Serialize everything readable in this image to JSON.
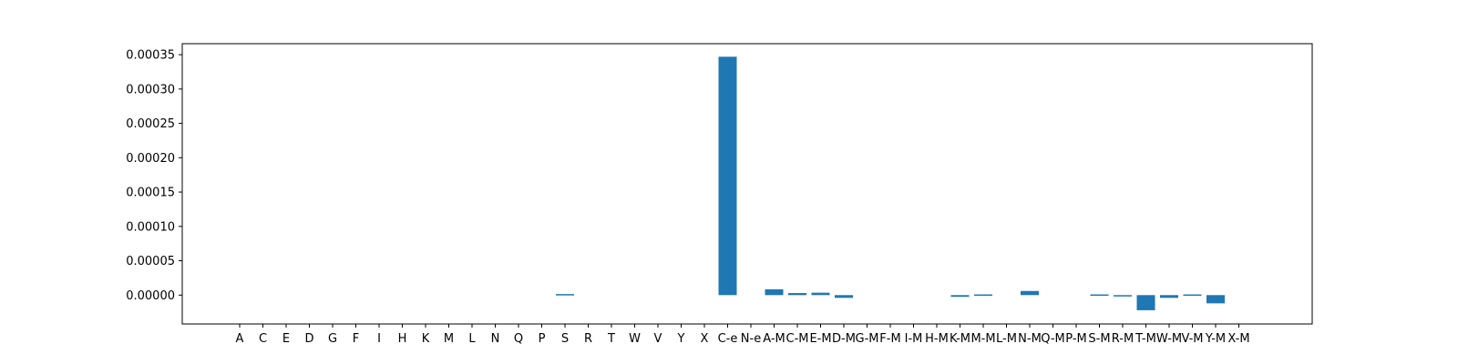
{
  "chart_data": {
    "type": "bar",
    "title": "",
    "xlabel": "",
    "ylabel": "",
    "ylim": [
      -4.2e-05,
      0.000366
    ],
    "yticks": [
      0.0,
      5e-05,
      0.0001,
      0.00015,
      0.0002,
      0.00025,
      0.0003,
      0.00035
    ],
    "ytick_labels": [
      "0.00000",
      "0.00005",
      "0.00010",
      "0.00015",
      "0.00020",
      "0.00025",
      "0.00030",
      "0.00035"
    ],
    "grid": false,
    "legend": "none",
    "bar_color": "#1f77b4",
    "categories": [
      "A",
      "C",
      "E",
      "D",
      "G",
      "F",
      "I",
      "H",
      "K",
      "M",
      "L",
      "N",
      "Q",
      "P",
      "S",
      "R",
      "T",
      "W",
      "V",
      "Y",
      "X",
      "C-e",
      "N-e",
      "A-M",
      "C-M",
      "E-M",
      "D-M",
      "G-M",
      "F-M",
      "I-M",
      "H-M",
      "K-M",
      "M-M",
      "L-M",
      "N-M",
      "Q-M",
      "P-M",
      "S-M",
      "R-M",
      "T-M",
      "W-M",
      "V-M",
      "Y-M",
      "X-M"
    ],
    "values": [
      0,
      0,
      0,
      0,
      0,
      0,
      0,
      0,
      0,
      0,
      0,
      0,
      0,
      0,
      1.5e-06,
      0,
      0,
      0,
      0,
      0,
      0,
      0.000347,
      0,
      8.5e-06,
      3e-06,
      3.5e-06,
      -4e-06,
      0,
      0,
      0,
      0,
      -2.5e-06,
      1e-06,
      0,
      6e-06,
      0,
      0,
      1e-06,
      -2e-06,
      -2.2e-05,
      -4e-06,
      1e-06,
      -1.2e-05,
      0
    ]
  }
}
